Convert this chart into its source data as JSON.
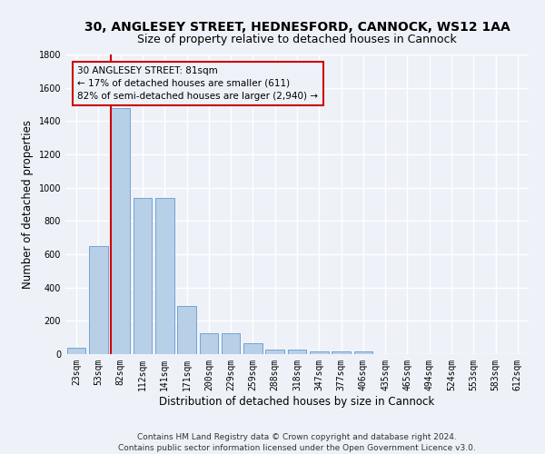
{
  "title1": "30, ANGLESEY STREET, HEDNESFORD, CANNOCK, WS12 1AA",
  "title2": "Size of property relative to detached houses in Cannock",
  "xlabel": "Distribution of detached houses by size in Cannock",
  "ylabel": "Number of detached properties",
  "categories": [
    "23sqm",
    "53sqm",
    "82sqm",
    "112sqm",
    "141sqm",
    "171sqm",
    "200sqm",
    "229sqm",
    "259sqm",
    "288sqm",
    "318sqm",
    "347sqm",
    "377sqm",
    "406sqm",
    "435sqm",
    "465sqm",
    "494sqm",
    "524sqm",
    "553sqm",
    "583sqm",
    "612sqm"
  ],
  "values": [
    40,
    650,
    1480,
    940,
    940,
    290,
    125,
    125,
    65,
    25,
    25,
    15,
    15,
    15,
    0,
    0,
    0,
    0,
    0,
    0,
    0
  ],
  "bar_color": "#b8cfe8",
  "bar_edge_color": "#6699cc",
  "vline_color": "#cc0000",
  "annotation_text": "30 ANGLESEY STREET: 81sqm\n← 17% of detached houses are smaller (611)\n82% of semi-detached houses are larger (2,940) →",
  "annotation_box_color": "#cc0000",
  "ylim": [
    0,
    1800
  ],
  "yticks": [
    0,
    200,
    400,
    600,
    800,
    1000,
    1200,
    1400,
    1600,
    1800
  ],
  "footnote": "Contains HM Land Registry data © Crown copyright and database right 2024.\nContains public sector information licensed under the Open Government Licence v3.0.",
  "background_color": "#eef2f8",
  "grid_color": "#ffffff",
  "title1_fontsize": 10,
  "title2_fontsize": 9,
  "axis_label_fontsize": 8.5,
  "tick_fontsize": 7,
  "footnote_fontsize": 6.5,
  "annotation_fontsize": 7.5
}
